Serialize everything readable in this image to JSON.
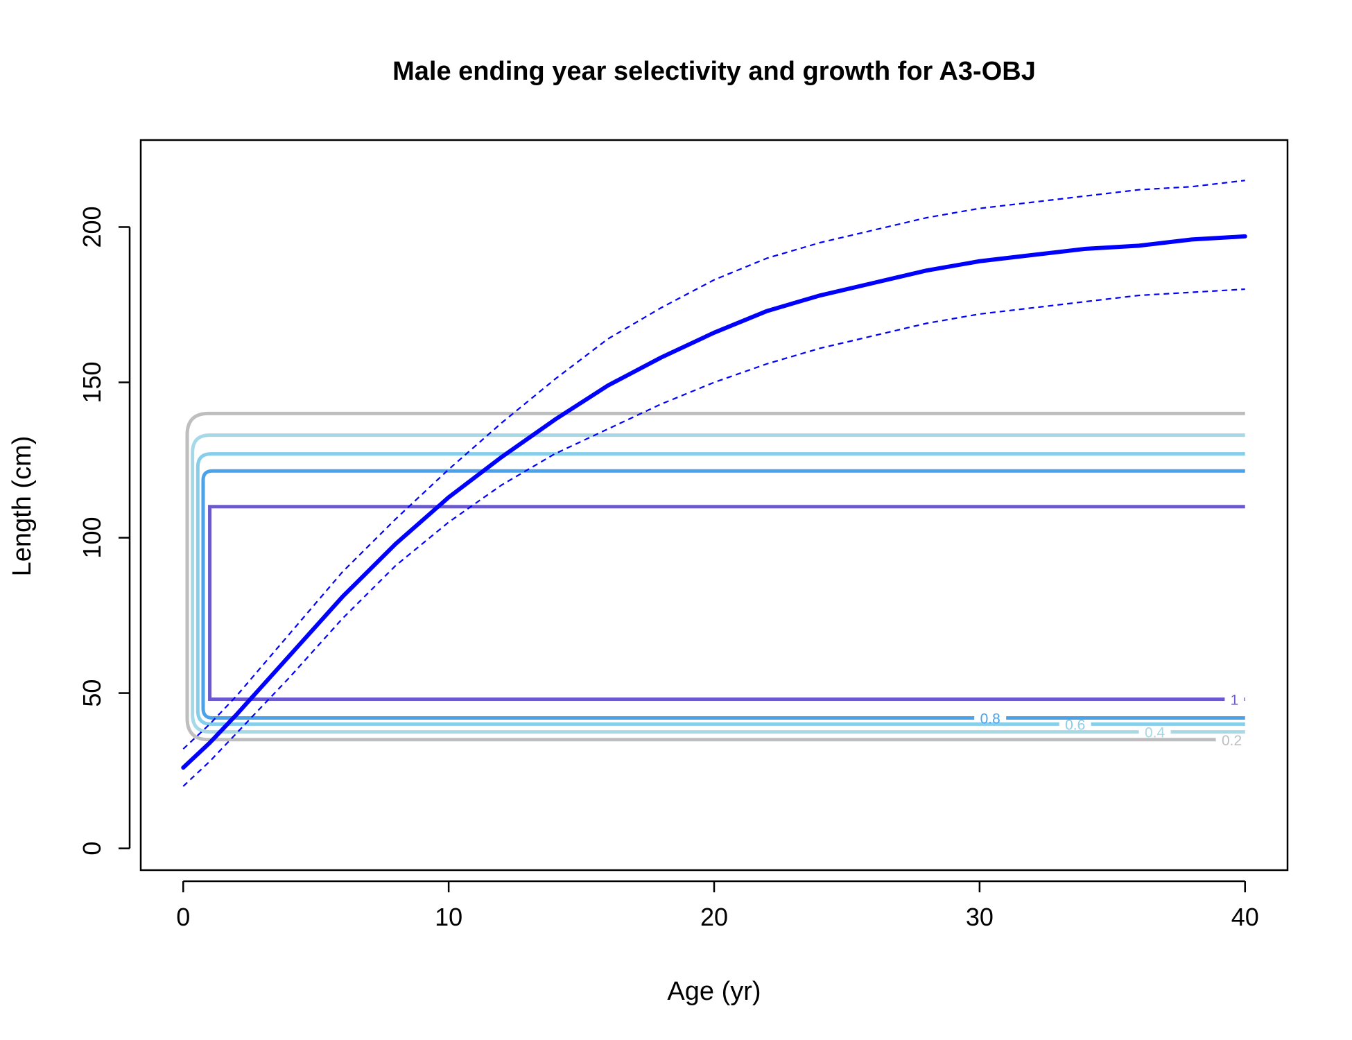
{
  "chart_data": {
    "type": "line",
    "title": "Male ending year selectivity and growth for A3-OBJ",
    "xlabel": "Age (yr)",
    "ylabel": "Length (cm)",
    "xlim": [
      -1.6,
      41.6
    ],
    "ylim": [
      -7,
      228
    ],
    "x_ticks": [
      0,
      10,
      20,
      30,
      40
    ],
    "y_ticks": [
      0,
      50,
      100,
      150,
      200
    ],
    "x_tick_labels": [
      "0",
      "10",
      "20",
      "30",
      "40"
    ],
    "y_tick_labels": [
      "0",
      "50",
      "100",
      "150",
      "200"
    ],
    "grid": false,
    "legend": "none",
    "growth": {
      "mean": {
        "color": "#0000ff",
        "style": "solid",
        "x": [
          0,
          1,
          2,
          4,
          6,
          8,
          10,
          12,
          14,
          16,
          18,
          20,
          22,
          24,
          26,
          28,
          30,
          32,
          34,
          36,
          38,
          40
        ],
        "y": [
          26,
          34,
          43,
          62,
          81,
          98,
          113,
          126,
          138,
          149,
          158,
          166,
          173,
          178,
          182,
          186,
          189,
          191,
          193,
          194,
          196,
          197
        ]
      },
      "upper": {
        "color": "#0000ff",
        "style": "dashed",
        "x": [
          0,
          1,
          2,
          4,
          6,
          8,
          10,
          12,
          14,
          16,
          18,
          20,
          22,
          24,
          26,
          28,
          30,
          32,
          34,
          36,
          38,
          40
        ],
        "y": [
          32,
          40,
          49,
          69,
          89,
          106,
          122,
          137,
          151,
          164,
          174,
          183,
          190,
          195,
          199,
          203,
          206,
          208,
          210,
          212,
          213,
          215
        ]
      },
      "lower": {
        "color": "#0000ff",
        "style": "dashed",
        "x": [
          0,
          1,
          2,
          4,
          6,
          8,
          10,
          12,
          14,
          16,
          18,
          20,
          22,
          24,
          26,
          28,
          30,
          32,
          34,
          36,
          38,
          40
        ],
        "y": [
          20,
          28,
          37,
          55,
          74,
          91,
          105,
          117,
          127,
          135,
          143,
          150,
          156,
          161,
          165,
          169,
          172,
          174,
          176,
          178,
          179,
          180
        ]
      }
    },
    "selectivity_contours": [
      {
        "level": "0.2",
        "color": "#bebebe",
        "left_age": 0.15,
        "bottom_len": 35,
        "top_len": 140,
        "radius_age": 0.8,
        "label_age": 39.5
      },
      {
        "level": "0.4",
        "color": "#a6d8e8",
        "left_age": 0.35,
        "bottom_len": 37.5,
        "top_len": 133,
        "radius_age": 0.65,
        "label_age": 36.6
      },
      {
        "level": "0.6",
        "color": "#87ceeb",
        "left_age": 0.55,
        "bottom_len": 40,
        "top_len": 127,
        "radius_age": 0.5,
        "label_age": 33.6
      },
      {
        "level": "0.8",
        "color": "#4aa3ea",
        "left_age": 0.75,
        "bottom_len": 42,
        "top_len": 121.5,
        "radius_age": 0.35,
        "label_age": 30.4
      },
      {
        "level": "1",
        "color": "#6a5acd",
        "left_age": 1.0,
        "bottom_len": 48,
        "top_len": 110,
        "radius_age": 0.0,
        "label_age": 39.6
      }
    ]
  }
}
